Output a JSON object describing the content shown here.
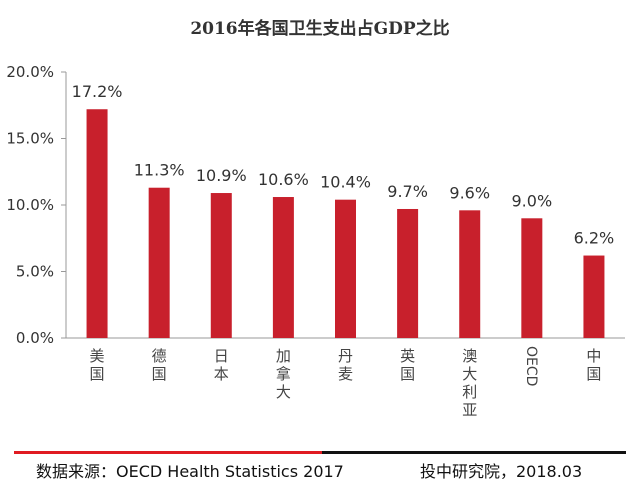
{
  "chart_data": {
    "type": "bar",
    "title": "2016年各国卫生支出占GDP之比",
    "categories": [
      "美国",
      "德国",
      "日本",
      "加拿大",
      "丹麦",
      "英国",
      "澳大利亚",
      "OECD",
      "中国"
    ],
    "values": [
      17.2,
      11.3,
      10.9,
      10.6,
      10.4,
      9.7,
      9.6,
      9.0,
      6.2
    ],
    "data_labels": [
      "17.2%",
      "11.3%",
      "10.9%",
      "10.6%",
      "10.4%",
      "9.7%",
      "9.6%",
      "9.0%",
      "6.2%"
    ],
    "y_ticks": [
      "0.0%",
      "5.0%",
      "10.0%",
      "15.0%",
      "20.0%"
    ],
    "ylim": [
      0,
      20
    ],
    "xlabel": "",
    "ylabel": "",
    "grid": false,
    "bar_color": "#c8202c"
  },
  "footer": {
    "source": "数据来源：OECD Health Statistics 2017",
    "credit": "投中研究院，2018.03",
    "accent_color": "#e01b22"
  }
}
